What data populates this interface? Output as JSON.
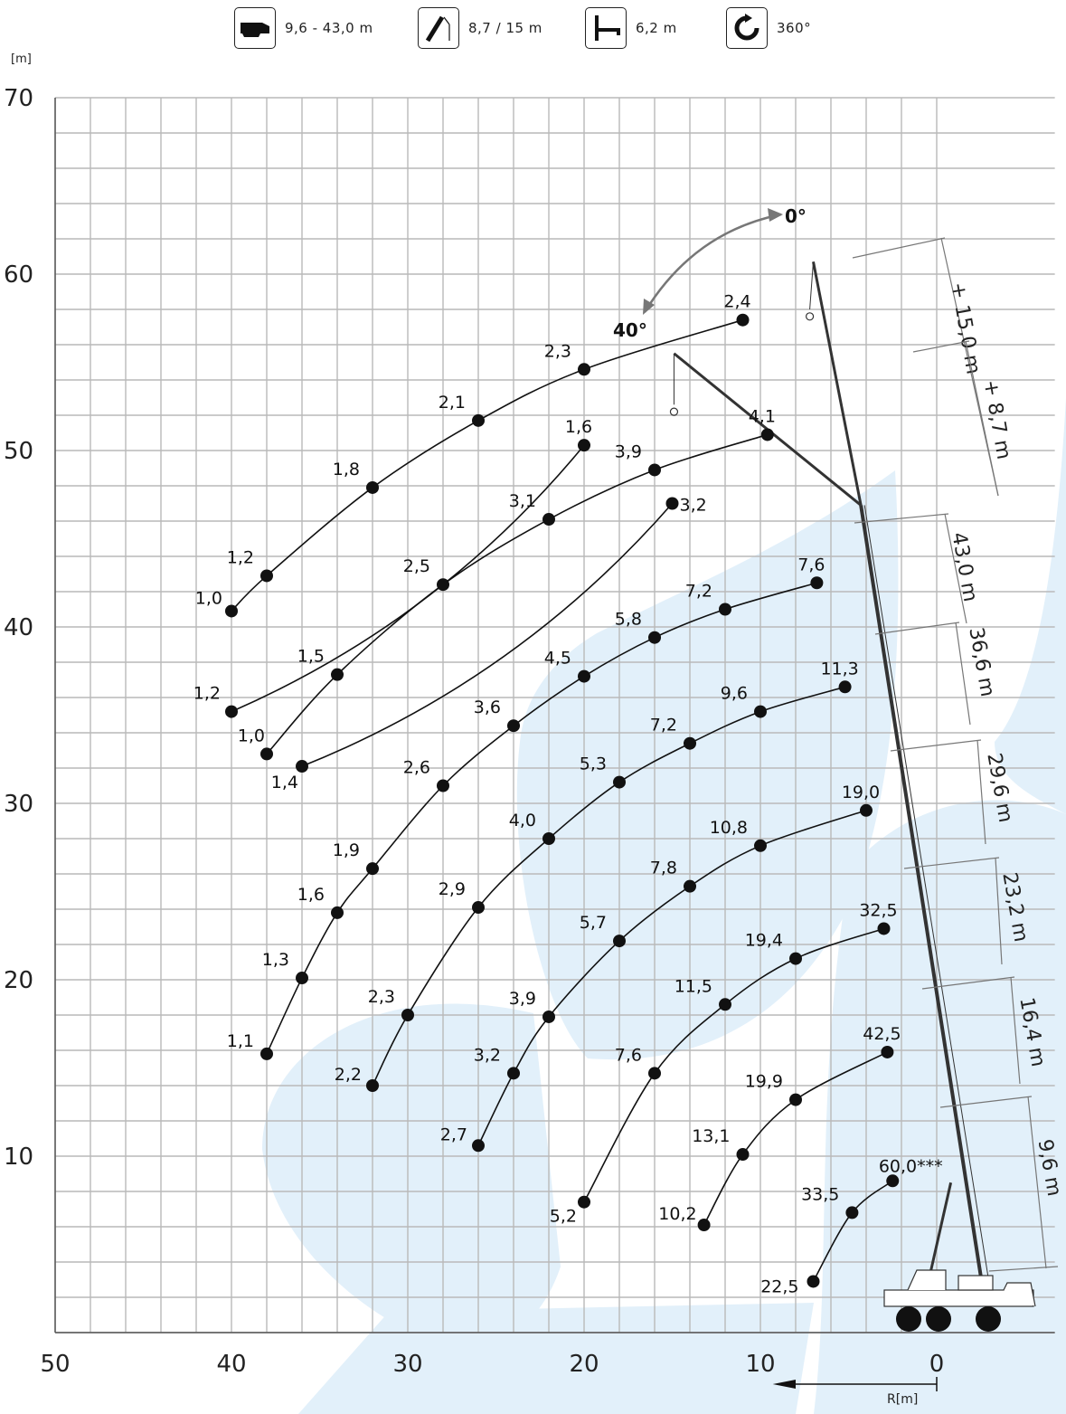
{
  "specs": [
    {
      "icon": "boom-length-icon",
      "label": "9,6 - 43,0 m"
    },
    {
      "icon": "jib-icon",
      "label": "8,7 / 15 m"
    },
    {
      "icon": "outrigger-icon",
      "label": "6,2 m"
    },
    {
      "icon": "slewing-360-icon",
      "label": "360°"
    }
  ],
  "chart_data": {
    "type": "line",
    "xlabel": "R[m]",
    "ylabel": "[m]",
    "xlim": [
      50,
      0
    ],
    "ylim": [
      0,
      70
    ],
    "x_ticks": [
      "50",
      "40",
      "30",
      "20",
      "10",
      "0"
    ],
    "y_ticks": [
      "10",
      "20",
      "30",
      "40",
      "50",
      "60",
      "70"
    ],
    "grid": true,
    "annotations": [
      "0°",
      "40°"
    ],
    "boom_labels": [
      "+ 15,0 m",
      "+ 8,7 m",
      "43,0 m",
      "36,6 m",
      "29,6 m",
      "23,2 m",
      "16,4 m",
      "9,6 m"
    ],
    "series": [
      {
        "style": "jib-0",
        "points": [
          {
            "x": 40,
            "y": 40.9,
            "label": "1,0"
          },
          {
            "x": 38,
            "y": 42.9,
            "label": "1,2"
          },
          {
            "x": 32,
            "y": 47.9,
            "label": "1,8"
          },
          {
            "x": 26,
            "y": 51.7,
            "label": "2,1"
          },
          {
            "x": 20,
            "y": 54.6,
            "label": "2,3"
          },
          {
            "x": 11,
            "y": 57.4,
            "label": "2,4"
          }
        ]
      },
      {
        "style": "jib-40",
        "points": [
          {
            "x": 40,
            "y": 35.2,
            "label": "1,2"
          },
          {
            "x": 20,
            "y": 50.3,
            "label": "1,6"
          }
        ]
      },
      {
        "style": "jib-8",
        "points": [
          {
            "x": 38,
            "y": 32.8,
            "label": "1,0"
          },
          {
            "x": 34,
            "y": 37.3,
            "label": "1,5"
          },
          {
            "x": 28,
            "y": 42.4,
            "label": "2,5"
          },
          {
            "x": 22,
            "y": 46.1,
            "label": "3,1"
          },
          {
            "x": 16,
            "y": 48.9,
            "label": "3,9"
          },
          {
            "x": 9.6,
            "y": 50.9,
            "label": "4,1"
          }
        ]
      },
      {
        "style": "jib-8-40",
        "points": [
          {
            "x": 36,
            "y": 32.1,
            "label": "1,4"
          },
          {
            "x": 15,
            "y": 47.0,
            "label": "3,2"
          }
        ]
      },
      {
        "style": "boom-43.0",
        "points": [
          {
            "x": 38,
            "y": 15.8,
            "label": "1,1"
          },
          {
            "x": 36,
            "y": 20.1,
            "label": "1,3"
          },
          {
            "x": 34,
            "y": 23.8,
            "label": "1,6"
          },
          {
            "x": 32,
            "y": 26.3,
            "label": "1,9"
          },
          {
            "x": 28,
            "y": 31.0,
            "label": "2,6"
          },
          {
            "x": 24,
            "y": 34.4,
            "label": "3,6"
          },
          {
            "x": 20,
            "y": 37.2,
            "label": "4,5"
          },
          {
            "x": 16,
            "y": 39.4,
            "label": "5,8"
          },
          {
            "x": 12,
            "y": 41.0,
            "label": "7,2"
          },
          {
            "x": 6.8,
            "y": 42.5,
            "label": "7,6"
          }
        ]
      },
      {
        "style": "boom-36.6",
        "points": [
          {
            "x": 32,
            "y": 14.0,
            "label": "2,2"
          },
          {
            "x": 30,
            "y": 18.0,
            "label": "2,3"
          },
          {
            "x": 26,
            "y": 24.1,
            "label": "2,9"
          },
          {
            "x": 22,
            "y": 28.0,
            "label": "4,0"
          },
          {
            "x": 18,
            "y": 31.2,
            "label": "5,3"
          },
          {
            "x": 14,
            "y": 33.4,
            "label": "7,2"
          },
          {
            "x": 10,
            "y": 35.2,
            "label": "9,6"
          },
          {
            "x": 5.2,
            "y": 36.6,
            "label": "11,3"
          }
        ]
      },
      {
        "style": "boom-29.6",
        "points": [
          {
            "x": 26,
            "y": 10.6,
            "label": "2,7"
          },
          {
            "x": 24,
            "y": 14.7,
            "label": "3,2"
          },
          {
            "x": 22,
            "y": 17.9,
            "label": "3,9"
          },
          {
            "x": 18,
            "y": 22.2,
            "label": "5,7"
          },
          {
            "x": 14,
            "y": 25.3,
            "label": "7,8"
          },
          {
            "x": 10,
            "y": 27.6,
            "label": "10,8"
          },
          {
            "x": 4,
            "y": 29.6,
            "label": "19,0"
          }
        ]
      },
      {
        "style": "boom-23.2",
        "points": [
          {
            "x": 20,
            "y": 7.4,
            "label": "5,2"
          },
          {
            "x": 16,
            "y": 14.7,
            "label": "7,6"
          },
          {
            "x": 12,
            "y": 18.6,
            "label": "11,5"
          },
          {
            "x": 8,
            "y": 21.2,
            "label": "19,4"
          },
          {
            "x": 3,
            "y": 22.9,
            "label": "32,5"
          }
        ]
      },
      {
        "style": "boom-16.4",
        "points": [
          {
            "x": 13.2,
            "y": 6.1,
            "label": "10,2"
          },
          {
            "x": 11,
            "y": 10.1,
            "label": "13,1"
          },
          {
            "x": 8,
            "y": 13.2,
            "label": "19,9"
          },
          {
            "x": 2.8,
            "y": 15.9,
            "label": "42,5"
          }
        ]
      },
      {
        "style": "boom-9.6",
        "points": [
          {
            "x": 7,
            "y": 2.9,
            "label": "22,5"
          },
          {
            "x": 4.8,
            "y": 6.8,
            "label": "33,5"
          },
          {
            "x": 2.5,
            "y": 8.6,
            "label": "60,0***"
          }
        ]
      }
    ]
  }
}
